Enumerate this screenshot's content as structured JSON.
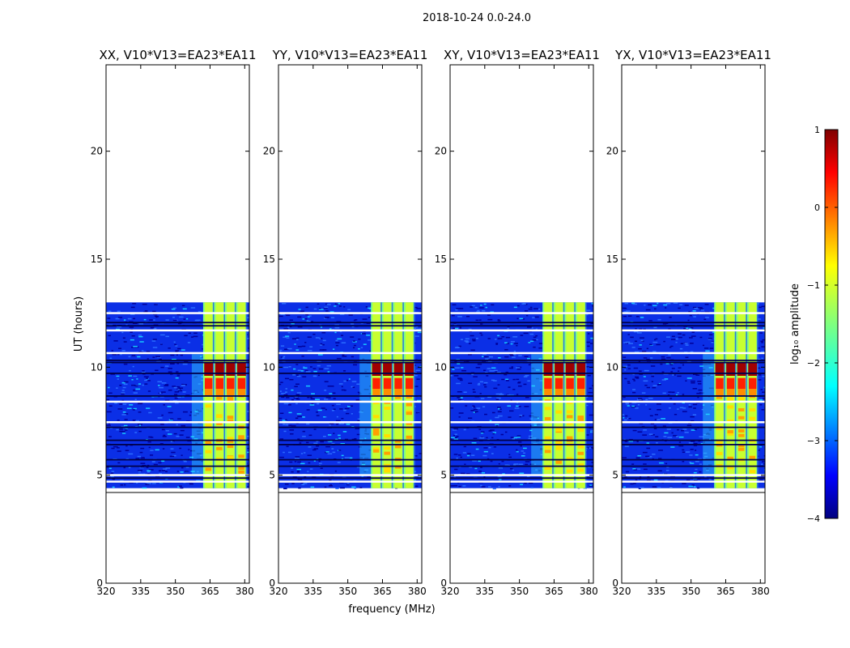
{
  "figure": {
    "suptitle": "2018-10-24 0.0-24.0"
  },
  "chart_data": {
    "type": "heatmap",
    "xlabel": "frequency (MHz)",
    "ylabel": "UT (hours)",
    "xlim": [
      320,
      382
    ],
    "ylim": [
      0,
      24
    ],
    "xticks": [
      320,
      335,
      350,
      365,
      380
    ],
    "yticks": [
      0,
      5,
      10,
      15,
      20
    ],
    "data_time_range": [
      4.4,
      13.0
    ],
    "fringe_line_time": 4.2,
    "panels": [
      {
        "title": "XX, V10*V13=EA23*EA11",
        "band_start": 362,
        "band_end": 381,
        "bright_time_range": [
          9.6,
          10.2
        ]
      },
      {
        "title": "YY, V10*V13=EA23*EA11",
        "band_start": 360,
        "band_end": 379,
        "bright_time_range": [
          9.6,
          10.2
        ]
      },
      {
        "title": "XY, V10*V13=EA23*EA11",
        "band_start": 360,
        "band_end": 379,
        "bright_time_range": [
          9.6,
          10.2
        ]
      },
      {
        "title": "YX, V10*V13=EA23*EA11",
        "band_start": 360,
        "band_end": 379,
        "bright_time_range": [
          9.6,
          10.2
        ]
      }
    ],
    "colorbar": {
      "label": "log₁₀ amplitude",
      "min": -4,
      "max": 1,
      "ticks": [
        "−4",
        "−3",
        "−2",
        "−1",
        "0",
        "1"
      ],
      "colormap": "jet"
    }
  }
}
